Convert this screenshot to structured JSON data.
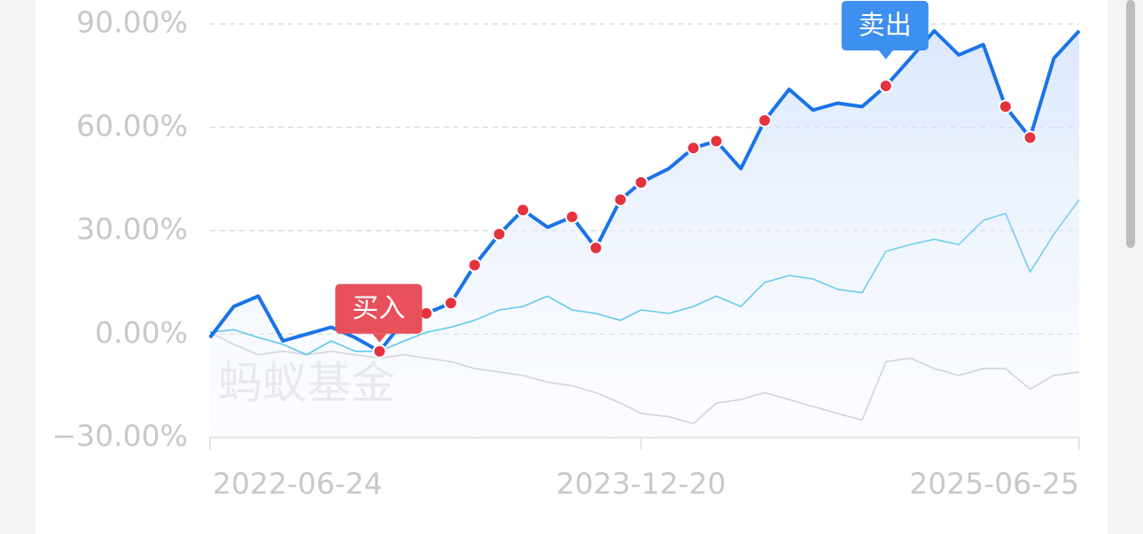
{
  "chart_data": {
    "type": "line",
    "x": [
      "2022-06-24",
      "2022-07-24",
      "2022-08-24",
      "2022-09-24",
      "2022-10-24",
      "2022-11-24",
      "2022-12-24",
      "2023-01-24",
      "2023-02-24",
      "2023-03-24",
      "2023-04-24",
      "2023-05-24",
      "2023-06-24",
      "2023-07-24",
      "2023-08-24",
      "2023-09-24",
      "2023-10-24",
      "2023-11-24",
      "2023-12-20",
      "2024-01-24",
      "2024-02-24",
      "2024-03-24",
      "2024-04-24",
      "2024-05-24",
      "2024-06-24",
      "2024-07-24",
      "2024-08-24",
      "2024-09-24",
      "2024-10-24",
      "2024-11-24",
      "2024-12-24",
      "2025-01-24",
      "2025-02-24",
      "2025-03-24",
      "2025-04-24",
      "2025-05-24",
      "2025-06-25"
    ],
    "series": [
      {
        "color": "#1a73e8",
        "fill": true,
        "values": [
          -1,
          8,
          11,
          -2,
          0,
          2,
          -1,
          -5,
          4,
          6,
          9,
          20,
          29,
          36,
          31,
          34,
          25,
          39,
          44,
          48,
          54,
          56,
          48,
          62,
          71,
          65,
          67,
          66,
          72,
          80,
          88,
          81,
          84,
          66,
          57,
          80,
          88
        ]
      },
      {
        "color": "#19b4e6",
        "values": [
          0.5,
          1.3,
          -1,
          -3,
          -6,
          -2,
          -5,
          -5,
          -2,
          0.5,
          2,
          4,
          7,
          8,
          11,
          7,
          6,
          4,
          7,
          6,
          8,
          11,
          8,
          15,
          17,
          16,
          13,
          12,
          24,
          26,
          27.5,
          26,
          33,
          35,
          18,
          29,
          39
        ]
      },
      {
        "color": "#c9c9c9",
        "values": [
          0.5,
          -3,
          -6,
          -5,
          -6,
          -5,
          -6,
          -7,
          -6,
          -7,
          -8,
          -10,
          -11,
          -12,
          -14,
          -15,
          -17,
          -20,
          -23,
          -24,
          -26,
          -20,
          -19,
          -17,
          -19,
          -21,
          -23,
          -25,
          -8,
          -7,
          -10,
          -12,
          -10,
          -10,
          -16,
          -12,
          -11
        ]
      },
      {
        "type": "scatter",
        "color": "#e5323f",
        "values": [
          null,
          null,
          null,
          null,
          null,
          null,
          null,
          -5,
          4,
          6,
          9,
          20,
          29,
          36,
          null,
          34,
          25,
          39,
          44,
          null,
          54,
          56,
          null,
          62,
          null,
          null,
          null,
          null,
          72,
          null,
          null,
          null,
          null,
          66,
          57,
          null,
          null
        ]
      }
    ],
    "annotations": [
      {
        "text": "买入",
        "x": "2023-01-24",
        "color": "#e8505b"
      },
      {
        "text": "卖出",
        "x": "2024-10-24",
        "color": "#3d8ff0"
      }
    ],
    "watermark": "蚂蚁基金",
    "xlim": [
      "2022-06-24",
      "2025-06-25"
    ],
    "xticks": [
      "2022-06-24",
      "2023-12-20",
      "2025-06-25"
    ],
    "ylim": [
      -30,
      90
    ],
    "yticks": [
      {
        "value": -30,
        "label": "−30.00%"
      },
      {
        "value": 0,
        "label": "0.00%"
      },
      {
        "value": 30,
        "label": "30.00%"
      },
      {
        "value": 60,
        "label": "60.00%"
      },
      {
        "value": 90,
        "label": "90.00%"
      }
    ],
    "grid": true
  }
}
